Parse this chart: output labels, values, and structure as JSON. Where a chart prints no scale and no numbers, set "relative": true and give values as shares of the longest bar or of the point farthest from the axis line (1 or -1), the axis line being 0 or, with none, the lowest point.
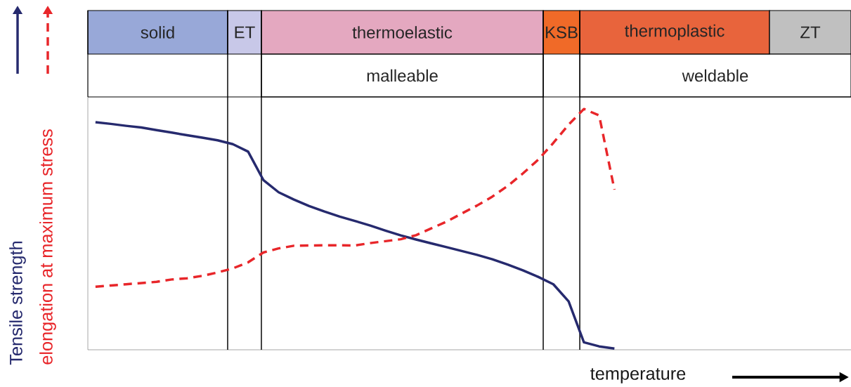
{
  "chart_data": {
    "type": "line",
    "relative": true,
    "xlabel": "temperature",
    "legend": "left",
    "marker": "none",
    "categories": [
      null,
      null,
      null,
      null,
      null,
      null,
      null,
      null,
      null,
      null,
      null,
      null,
      null,
      null,
      null,
      null,
      null,
      null,
      null,
      null,
      null,
      null,
      null,
      null,
      null,
      null,
      null,
      null,
      null,
      null,
      null,
      null,
      null,
      null,
      null,
      null,
      null,
      null,
      null,
      null,
      null,
      null,
      null,
      null,
      null,
      null,
      null,
      null,
      null,
      null
    ],
    "series": [
      {
        "name": "Tensile strength",
        "color": "#262a6e",
        "line_style": "solid",
        "values": [
          0.945,
          0.938,
          0.93,
          0.923,
          0.912,
          0.902,
          0.891,
          0.881,
          0.87,
          0.854,
          0.823,
          0.705,
          0.654,
          0.624,
          0.597,
          0.574,
          0.553,
          0.535,
          0.516,
          0.495,
          0.475,
          0.458,
          0.442,
          0.426,
          0.41,
          0.394,
          0.376,
          0.354,
          0.33,
          0.303,
          0.272,
          0.201,
          0.031,
          0.014,
          0.005,
          null,
          null,
          null,
          null,
          null,
          null,
          null,
          null,
          null,
          null,
          null,
          null,
          null,
          null,
          null
        ]
      },
      {
        "name": "elongation at maximum stress",
        "color": "#e8262a",
        "line_style": "dashed",
        "values": [
          0.262,
          0.267,
          0.272,
          0.277,
          0.282,
          0.292,
          0.297,
          0.307,
          0.321,
          0.338,
          0.363,
          0.404,
          0.421,
          0.432,
          0.433,
          0.434,
          0.434,
          0.433,
          0.443,
          0.451,
          0.459,
          0.476,
          0.504,
          0.532,
          0.566,
          0.599,
          0.636,
          0.68,
          0.732,
          0.789,
          0.859,
          0.935,
          1.0,
          0.973,
          0.665,
          null,
          null,
          null,
          null,
          null,
          null,
          null,
          null,
          null,
          null,
          null,
          null,
          null,
          null,
          null
        ]
      }
    ],
    "annotations": [
      "solid",
      "ET",
      "thermoelastic",
      "KSB",
      "thermoplastic",
      "ZT",
      "malleable",
      "weldable"
    ]
  }
}
